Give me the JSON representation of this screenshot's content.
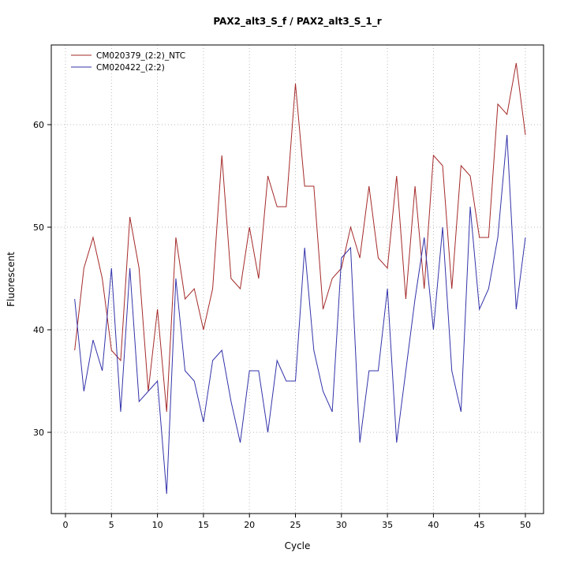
{
  "window": {
    "background": "#FFFFFF"
  },
  "chart_data": {
    "type": "line",
    "title": "PAX2_alt3_S_f / PAX2_alt3_S_1_r",
    "xlabel": "Cycle",
    "ylabel": "Fluorescent",
    "grid": true,
    "grid_style": "dotted",
    "grid_color": "#BBBBBB",
    "box_color": "#000000",
    "legend_position": "top-left",
    "xlim": [
      -1.5,
      52
    ],
    "ylim": [
      22,
      68
    ],
    "xticks": [
      0,
      5,
      10,
      15,
      20,
      25,
      30,
      35,
      40,
      45,
      50
    ],
    "yticks": [
      30,
      40,
      50,
      60
    ],
    "x": [
      1,
      2,
      3,
      4,
      5,
      6,
      7,
      8,
      9,
      10,
      11,
      12,
      13,
      14,
      15,
      16,
      17,
      18,
      19,
      20,
      21,
      22,
      23,
      24,
      25,
      26,
      27,
      28,
      29,
      30,
      31,
      32,
      33,
      34,
      35,
      36,
      37,
      38,
      39,
      40,
      41,
      42,
      43,
      44,
      45,
      46,
      47,
      48,
      49,
      50
    ],
    "series": [
      {
        "name": "CM020379_(2:2)_NTC",
        "color": "#A52A2A",
        "values": [
          38,
          46,
          49,
          45,
          38,
          37,
          51,
          46,
          34,
          42,
          32,
          49,
          43,
          44,
          40,
          44,
          57,
          45,
          44,
          50,
          45,
          55,
          52,
          52,
          64,
          54,
          54,
          42,
          45,
          46,
          50,
          47,
          54,
          47,
          46,
          55,
          43,
          54,
          44,
          57,
          56,
          44,
          56,
          55,
          49,
          49,
          62,
          61,
          66,
          59
        ]
      },
      {
        "name": "CM020422_(2:2)",
        "color": "#3333AA",
        "values": [
          43,
          34,
          39,
          36,
          46,
          32,
          46,
          33,
          34,
          35,
          24,
          45,
          36,
          35,
          31,
          37,
          38,
          33,
          29,
          36,
          36,
          30,
          37,
          35,
          35,
          48,
          38,
          34,
          32,
          47,
          48,
          29,
          36,
          36,
          44,
          29,
          36,
          43,
          49,
          40,
          50,
          36,
          32,
          52,
          42,
          44,
          49,
          59,
          42,
          49
        ]
      }
    ]
  }
}
